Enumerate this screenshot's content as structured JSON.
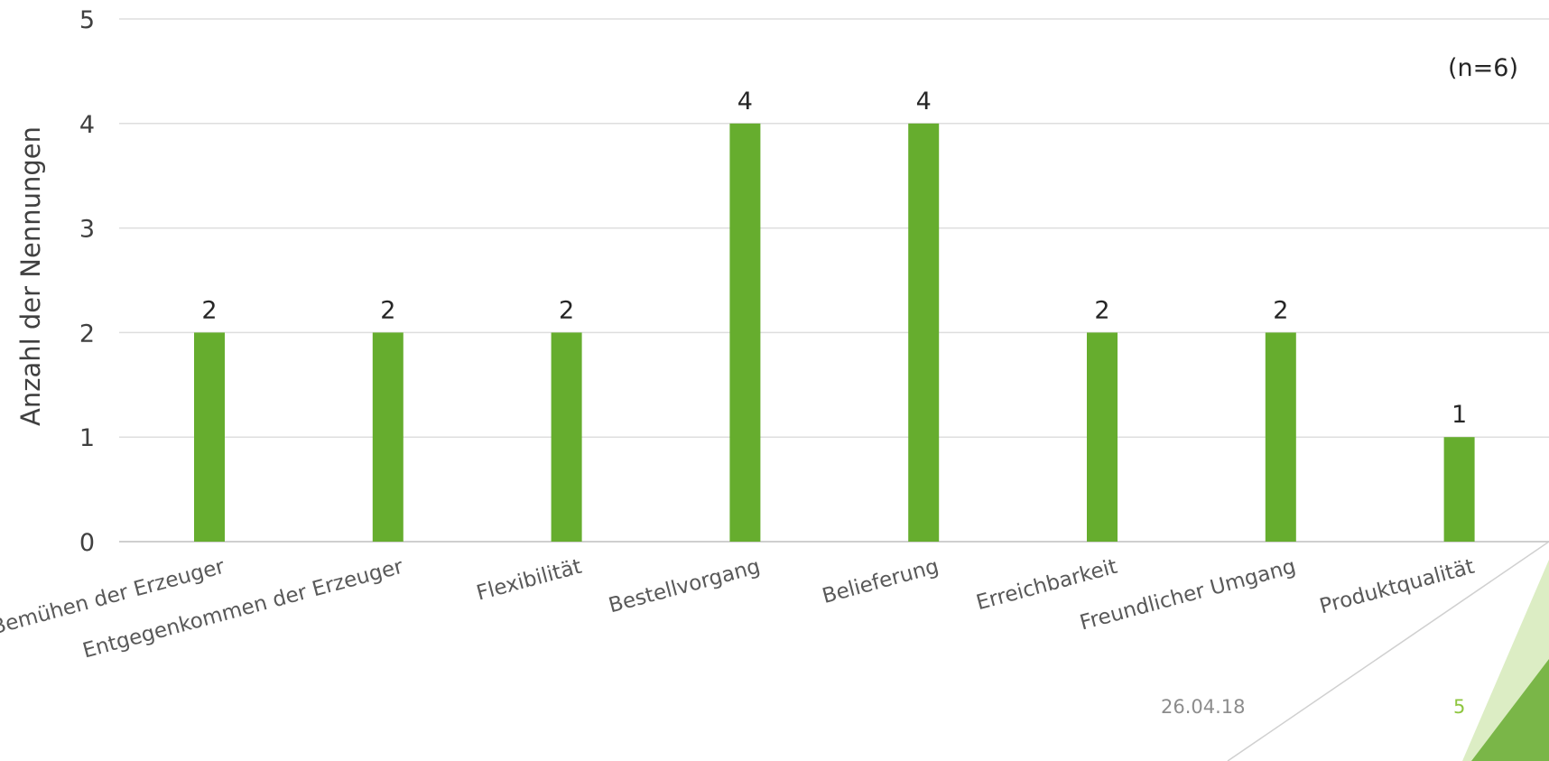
{
  "chart_data": {
    "type": "bar",
    "categories": [
      "Bemühen der Erzeuger",
      "Entgegenkommen der Erzeuger",
      "Flexibilität",
      "Bestellvorgang",
      "Belieferung",
      "Erreichbarkeit",
      "Freundlicher Umgang",
      "Produktqualität"
    ],
    "values": [
      2,
      2,
      2,
      4,
      4,
      2,
      2,
      1
    ],
    "ylabel": "Anzahl der Nennungen",
    "ylim": [
      0,
      5
    ],
    "yticks": [
      "0",
      "1",
      "2",
      "3",
      "4",
      "5"
    ],
    "grid": true,
    "bar_color": "#66ad2e",
    "annotation": "(n=6)"
  },
  "footer": {
    "date": "26.04.18",
    "page_number": "5",
    "accent_color": "#8ec63f"
  }
}
